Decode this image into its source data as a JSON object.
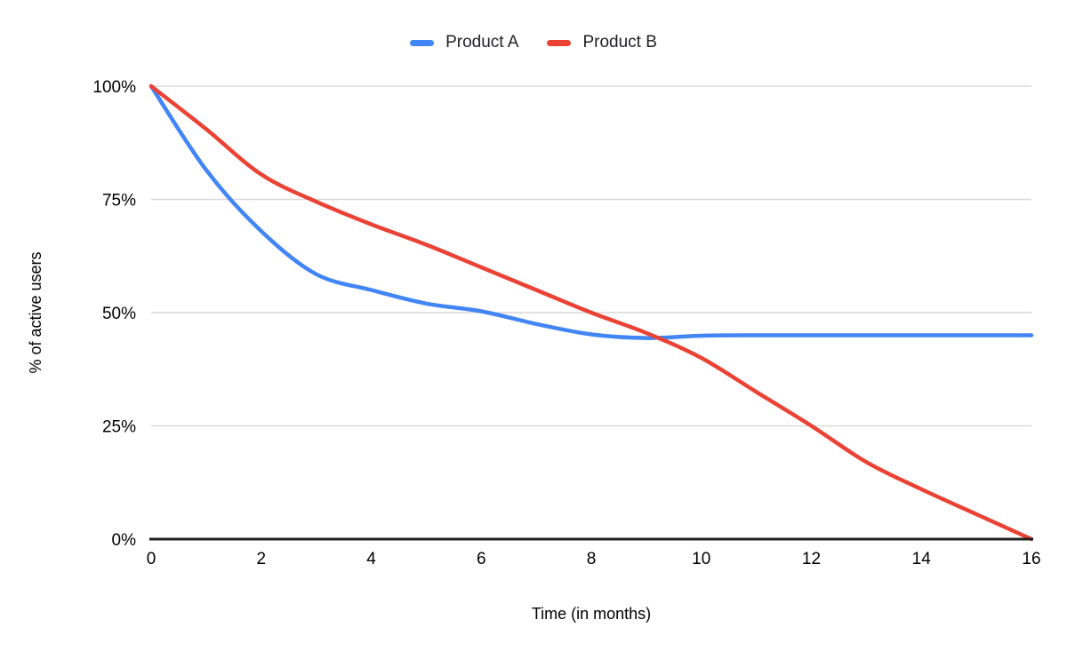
{
  "chart_data": {
    "type": "line",
    "title": "",
    "xlabel": "Time (in months)",
    "ylabel": "% of active users",
    "xlim": [
      0,
      16
    ],
    "ylim": [
      0,
      100
    ],
    "grid": true,
    "legend_position": "top",
    "x_ticks": [
      0,
      2,
      4,
      6,
      8,
      10,
      12,
      14,
      16
    ],
    "y_ticks": [
      {
        "value": 100,
        "label": "100%"
      },
      {
        "value": 75,
        "label": "75%"
      },
      {
        "value": 50,
        "label": "50%"
      },
      {
        "value": 25,
        "label": "25%"
      },
      {
        "value": 0,
        "label": "0%"
      }
    ],
    "x": [
      0,
      1,
      2,
      3,
      4,
      5,
      6,
      7,
      8,
      9,
      10,
      11,
      12,
      13,
      14,
      15,
      16
    ],
    "series": [
      {
        "name": "Product A",
        "color": "#4285F4",
        "values": [
          100,
          81.5,
          68,
          58.5,
          55,
          52,
          50.3,
          47.5,
          45.2,
          44.4,
          44.9,
          45,
          45,
          45,
          45,
          45,
          45
        ]
      },
      {
        "name": "Product B",
        "color": "#EA4335",
        "values": [
          100,
          90.5,
          80.5,
          74.5,
          69.5,
          65,
          60,
          55,
          50,
          45.5,
          40,
          32.5,
          25,
          17,
          11,
          5.5,
          0
        ]
      }
    ],
    "colors": {
      "gridline": "#D9D9D9",
      "axis_line": "#212121",
      "text": "#000000"
    }
  },
  "legend": {
    "items": [
      {
        "label": "Product A",
        "color": "#4285F4"
      },
      {
        "label": "Product B",
        "color": "#EA4335"
      }
    ]
  }
}
